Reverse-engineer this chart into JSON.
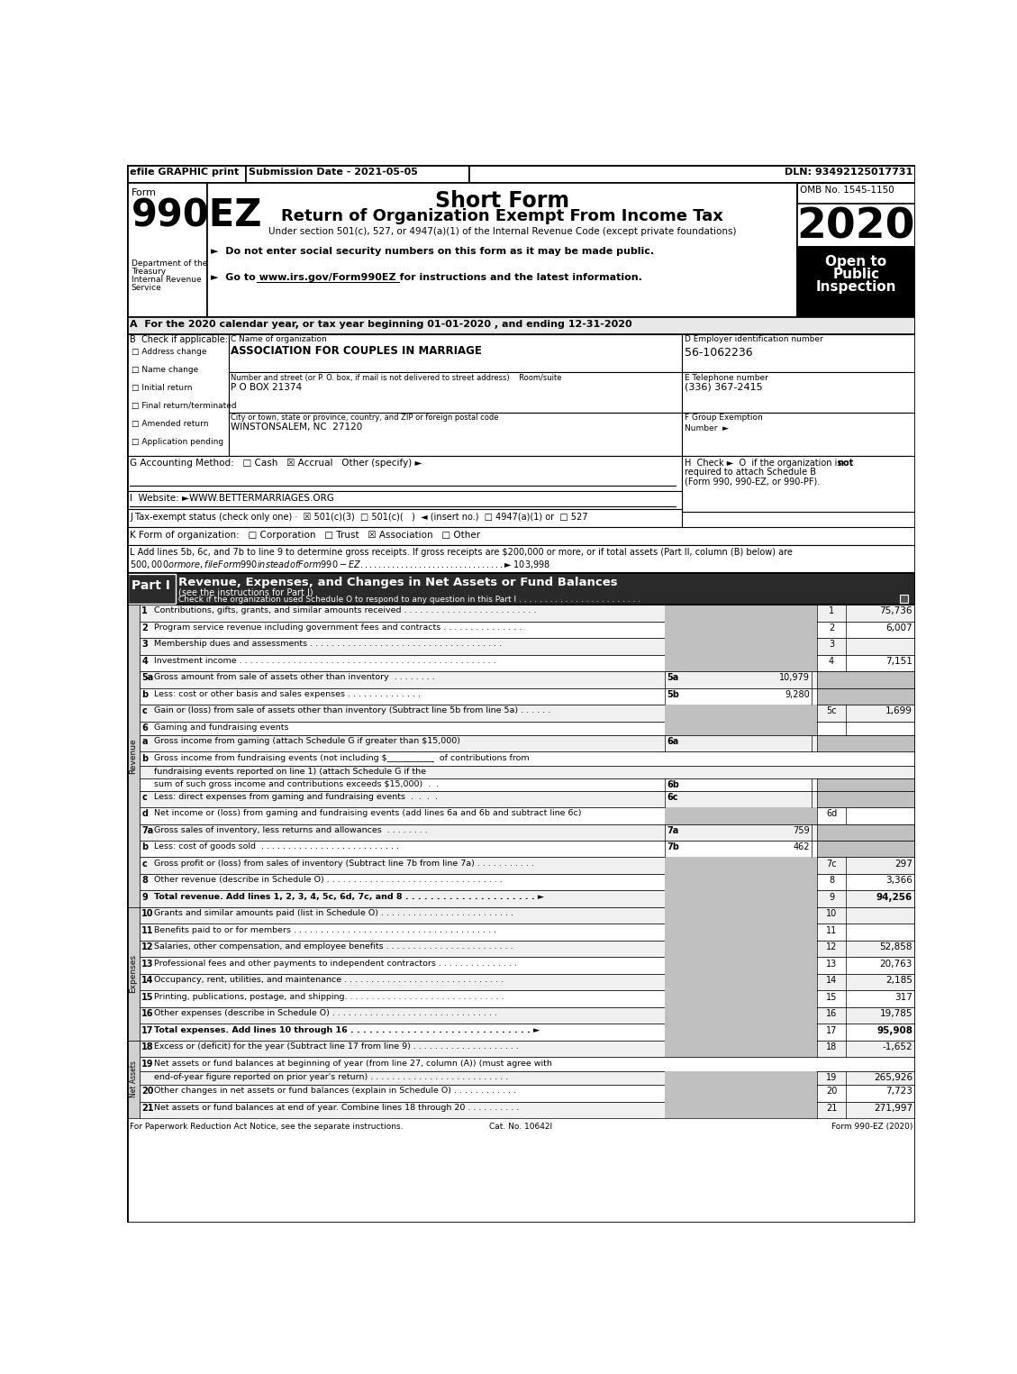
{
  "title_bar": {
    "efile": "efile GRAPHIC print",
    "submission": "Submission Date - 2021-05-05",
    "dln": "DLN: 93492125017731"
  },
  "form_header": {
    "form_label": "Form",
    "form_number": "990EZ",
    "short_form": "Short Form",
    "return_title": "Return of Organization Exempt From Income Tax",
    "under_section": "Under section 501(c), 527, or 4947(a)(1) of the Internal Revenue Code (except private foundations)",
    "bullet1": "►  Do not enter social security numbers on this form as it may be made public.",
    "bullet2": "►  Go to www.irs.gov/Form990EZ for instructions and the latest information.",
    "omb": "OMB No. 1545-1150",
    "year": "2020",
    "dept1": "Department of the",
    "dept2": "Treasury",
    "dept3": "Internal Revenue",
    "dept4": "Service"
  },
  "section_a_label": "A  For the 2020 calendar year, or tax year beginning 01-01-2020 , and ending 12-31-2020",
  "section_b_options": [
    "Address change",
    "Name change",
    "Initial return",
    "Final return/terminated",
    "Amended return",
    "Application pending"
  ],
  "org_name": "ASSOCIATION FOR COUPLES IN MARRIAGE",
  "org_address": "P O BOX 21374",
  "org_city": "WINSTONSALEM, NC  27120",
  "ein": "56-1062236",
  "phone": "(336) 367-2415",
  "footer": {
    "left": "For Paperwork Reduction Act Notice, see the separate instructions.",
    "center": "Cat. No. 10642I",
    "right": "Form 990-EZ (2020)"
  }
}
